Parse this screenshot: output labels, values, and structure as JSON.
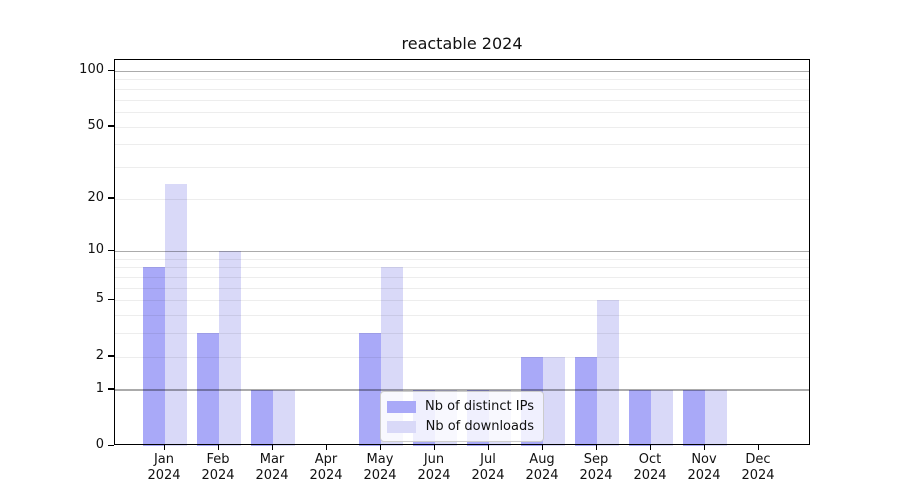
{
  "title": "reactable 2024",
  "chart_data": {
    "type": "bar",
    "title": "reactable 2024",
    "categories": [
      "Jan",
      "Feb",
      "Mar",
      "Apr",
      "May",
      "Jun",
      "Jul",
      "Aug",
      "Sep",
      "Oct",
      "Nov",
      "Dec"
    ],
    "year": "2024",
    "series": [
      {
        "name": "Nb of distinct IPs",
        "color": "#a9a9f8",
        "values": [
          8,
          3,
          1,
          0,
          3,
          1,
          1,
          2,
          2,
          1,
          1,
          0
        ]
      },
      {
        "name": "Nb of downloads",
        "color": "#d9d9f8",
        "values": [
          24,
          10,
          1,
          0,
          8,
          1,
          1,
          2,
          5,
          1,
          1,
          0
        ]
      }
    ],
    "y_scale": "log1p",
    "ylim": [
      0,
      115
    ],
    "y_ticks": [
      0,
      1,
      2,
      5,
      10,
      20,
      50,
      100
    ],
    "y_major_gridlines": [
      1,
      10,
      100
    ],
    "y_minor_gridlines": [
      2,
      3,
      4,
      5,
      6,
      7,
      8,
      9,
      20,
      30,
      40,
      50,
      60,
      70,
      80,
      90
    ],
    "grid": true,
    "legend_position": "lower center"
  },
  "colors": {
    "bar_distinct_ips": "#a9a9f8",
    "bar_downloads": "#d9d9f8",
    "grid_major": "#ababab",
    "grid_minor": "#ededed",
    "axis": "#000000",
    "legend_border": "#cccccc"
  }
}
